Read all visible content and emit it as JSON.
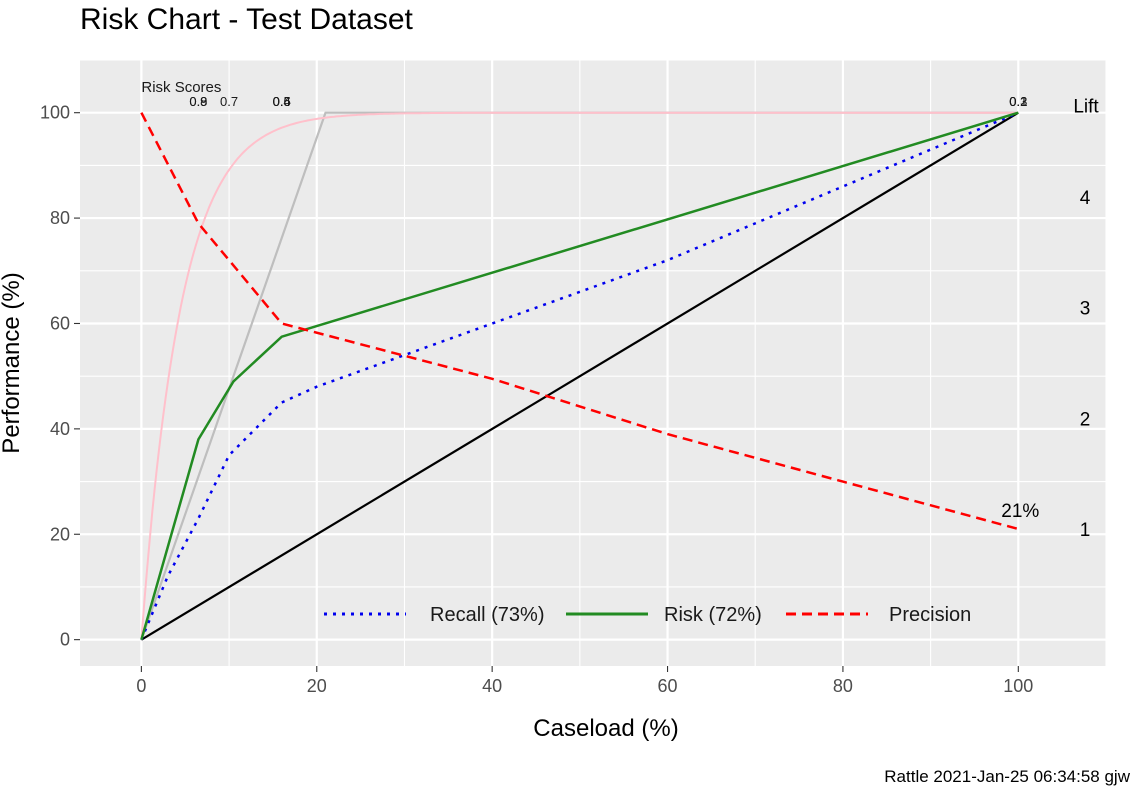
{
  "title": "Risk Chart - Test Dataset",
  "caption": "Rattle 2021-Jan-25 06:34:58 gjw",
  "chart_data": {
    "type": "line",
    "xlabel": "Caseload (%)",
    "ylabel": "Performance (%)",
    "xlim": [
      -7,
      110
    ],
    "ylim": [
      -5,
      110
    ],
    "x_ticks": [
      0,
      20,
      40,
      60,
      80,
      100
    ],
    "y_ticks": [
      0,
      20,
      40,
      60,
      80,
      100
    ],
    "grid": true,
    "legend_position": "bottom-inside",
    "series": [
      {
        "name": "Recall (73%)",
        "key": "recall",
        "color": "#0000ee",
        "dash": "3,6",
        "x": [
          0,
          3,
          6.5,
          10,
          16,
          20,
          40,
          60,
          80,
          100
        ],
        "y": [
          0,
          12,
          23,
          35,
          45,
          48,
          60,
          72,
          86,
          100
        ]
      },
      {
        "name": "Risk (72%)",
        "key": "risk",
        "color": "#228b22",
        "dash": "",
        "x": [
          0,
          6.5,
          10.5,
          16,
          100
        ],
        "y": [
          0,
          38,
          49,
          57.5,
          100
        ]
      },
      {
        "name": "Precision",
        "key": "precision",
        "color": "#ff0000",
        "dash": "10,6",
        "x": [
          0,
          6.5,
          10,
          16,
          40,
          60,
          80,
          100
        ],
        "y": [
          100,
          79,
          72,
          60,
          49.5,
          39,
          30,
          21
        ]
      }
    ],
    "reference_lines": [
      {
        "key": "diagonal",
        "color": "#000000",
        "x": [
          0,
          100
        ],
        "y": [
          0,
          100
        ]
      },
      {
        "key": "optimal",
        "color": "#bebebe",
        "x": [
          0,
          21,
          100
        ],
        "y": [
          0,
          100,
          100
        ]
      },
      {
        "key": "lift-curve",
        "color": "#ffc0cb",
        "equation": "100*(1-exp(-x/4.5))",
        "x_range": [
          0,
          100
        ]
      }
    ],
    "risk_scores_label": "Risk Scores",
    "risk_scores": [
      {
        "x": 6.5,
        "label": "0.8"
      },
      {
        "x": 6.5,
        "label": "0.9"
      },
      {
        "x": 10,
        "label": "0.7"
      },
      {
        "x": 16,
        "label": "0.6"
      },
      {
        "x": 16,
        "label": "0.5"
      },
      {
        "x": 16,
        "label": "0.4"
      },
      {
        "x": 100,
        "label": "0.3"
      },
      {
        "x": 100,
        "label": "0.2"
      },
      {
        "x": 100,
        "label": "0.1"
      }
    ],
    "end_label": {
      "text": "21%",
      "x": 100,
      "y": 21
    },
    "lift_axis": {
      "title": "Lift",
      "ticks": [
        {
          "label": "4",
          "y": 84
        },
        {
          "label": "3",
          "y": 63
        },
        {
          "label": "2",
          "y": 42
        },
        {
          "label": "1",
          "y": 21
        }
      ]
    }
  }
}
